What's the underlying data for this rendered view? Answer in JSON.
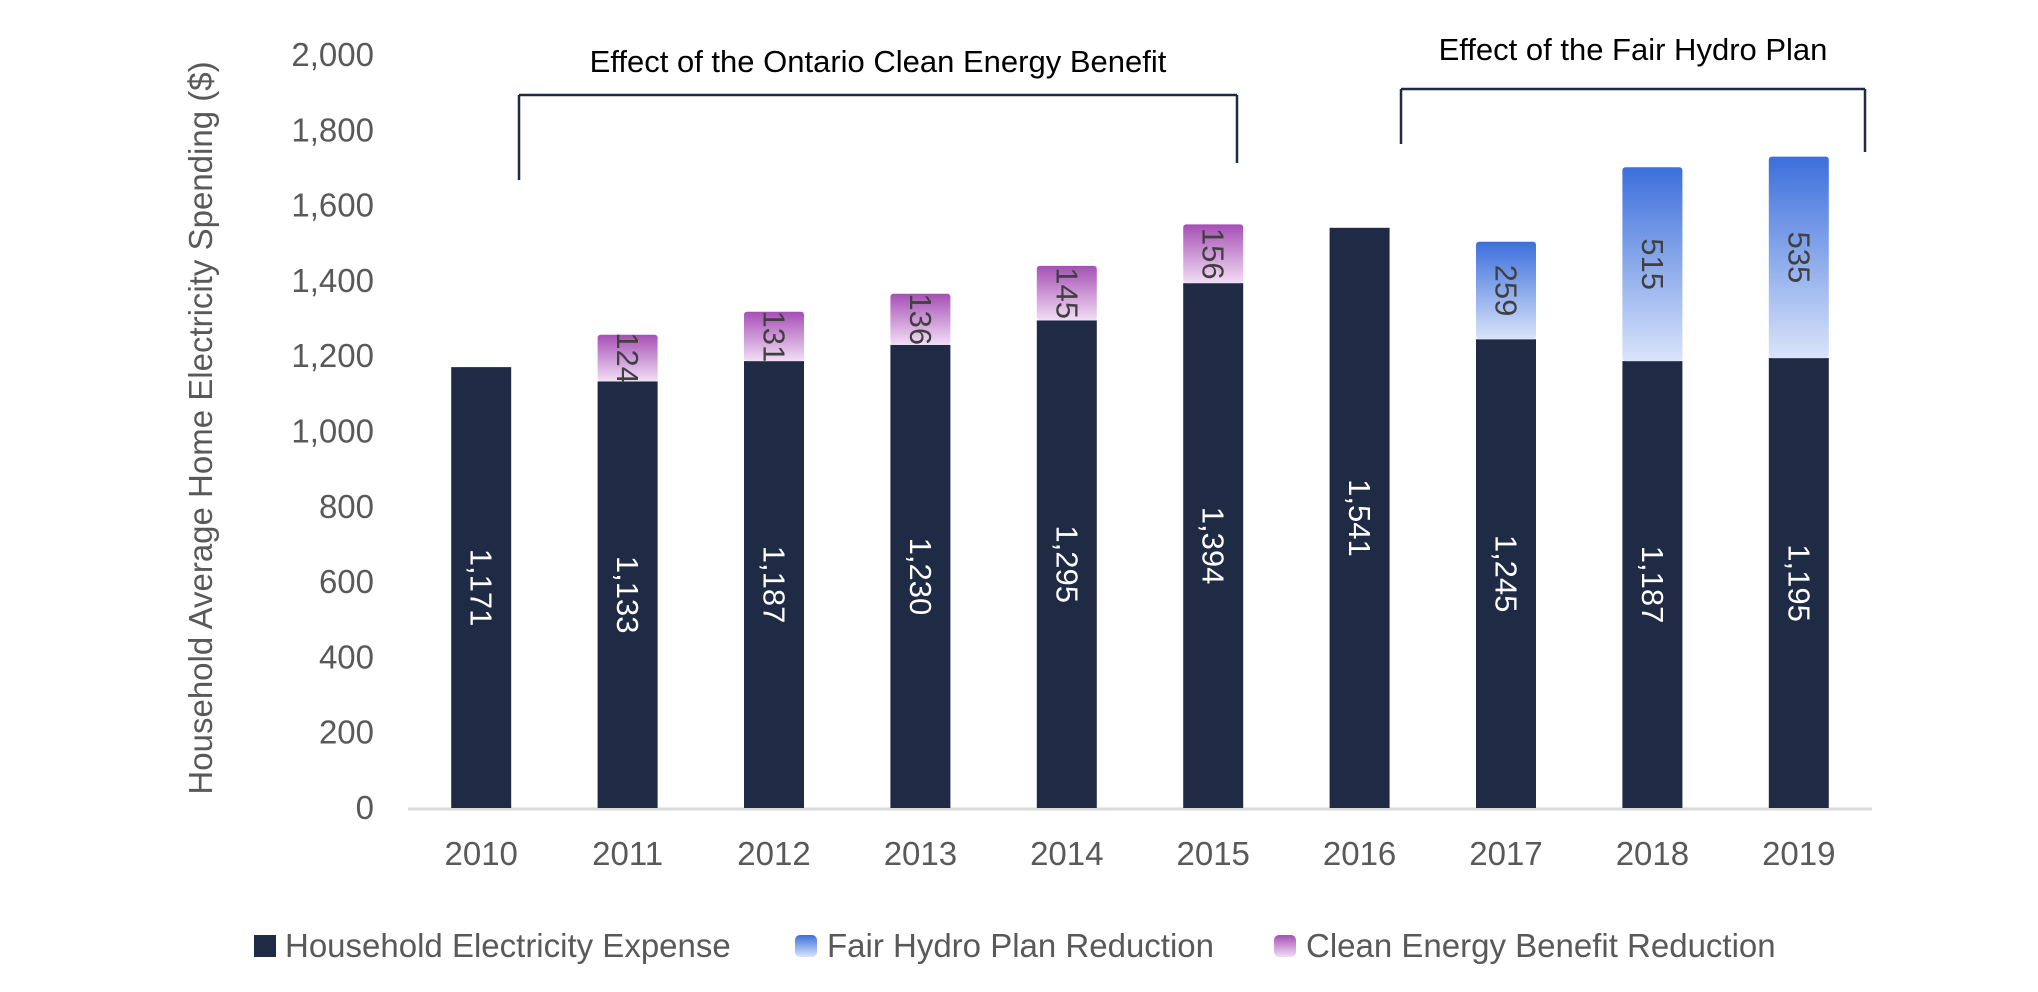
{
  "chart_data": {
    "type": "bar",
    "stacked": true,
    "categories": [
      "2010",
      "2011",
      "2012",
      "2013",
      "2014",
      "2015",
      "2016",
      "2017",
      "2018",
      "2019"
    ],
    "series": [
      {
        "name": "Household Electricity Expense",
        "color": "#1f2a44",
        "values": [
          1171,
          1133,
          1187,
          1230,
          1295,
          1394,
          1541,
          1245,
          1187,
          1195
        ],
        "labels": [
          "1,171",
          "1,133",
          "1,187",
          "1,230",
          "1,295",
          "1,394",
          "1,541",
          "1,245",
          "1,187",
          "1,195"
        ]
      },
      {
        "name": "Fair Hydro Plan Reduction",
        "color": "#3c6fdc",
        "values": [
          null,
          null,
          null,
          null,
          null,
          null,
          null,
          259,
          515,
          535
        ],
        "labels": [
          "",
          "",
          "",
          "",
          "",
          "",
          "",
          "259",
          "515",
          "535"
        ]
      },
      {
        "name": "Clean Energy Benefit Reduction",
        "color": "#a64fb5",
        "values": [
          null,
          124,
          131,
          136,
          145,
          156,
          null,
          null,
          null,
          null
        ],
        "labels": [
          "",
          "124",
          "131",
          "136",
          "145",
          "156",
          "",
          "",
          "",
          ""
        ]
      }
    ],
    "ylabel": "Household Average Home Electricity Spending ($)",
    "ylim": [
      0,
      2000
    ],
    "yticks": [
      "0",
      "200",
      "400",
      "600",
      "800",
      "1,000",
      "1,200",
      "1,400",
      "1,600",
      "1,800",
      "2,000"
    ],
    "grid": false,
    "legend_position": "bottom",
    "annotations": [
      {
        "text": "Effect of the Ontario Clean Energy Benefit",
        "from": "2011",
        "to": "2015"
      },
      {
        "text": "Effect of the Fair Hydro Plan",
        "from": "2017",
        "to": "2019"
      }
    ]
  }
}
